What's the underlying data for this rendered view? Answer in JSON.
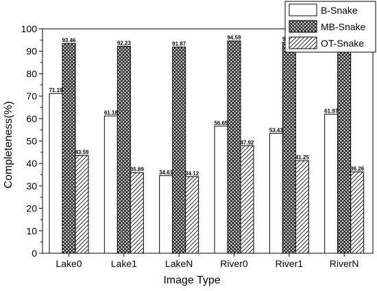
{
  "chart_data": {
    "type": "bar",
    "xlabel": "Image Type",
    "ylabel": "Completeness(%)",
    "ylim": [
      0,
      100
    ],
    "yticks": [
      0,
      10,
      20,
      30,
      40,
      50,
      60,
      70,
      80,
      90,
      100
    ],
    "categories": [
      "Lake0",
      "Lake1",
      "LakeN",
      "River0",
      "River1",
      "RiverN"
    ],
    "series": [
      {
        "name": "B-Snake",
        "pattern": "solid-white",
        "values": [
          71.19,
          61.18,
          34.61,
          56.65,
          53.43,
          61.97
        ]
      },
      {
        "name": "MB-Snake",
        "pattern": "crosshatch",
        "values": [
          93.46,
          92.23,
          91.87,
          94.59,
          94.03,
          89.76
        ]
      },
      {
        "name": "OT-Snake",
        "pattern": "diagonal",
        "values": [
          43.59,
          35.89,
          34.12,
          47.92,
          41.25,
          36.26
        ]
      }
    ],
    "value_labels": [
      [
        "71.19",
        "61.18",
        "34.61",
        "56.65",
        "53.43",
        "61.97"
      ],
      [
        "93.46",
        "92.23",
        "91.87",
        "94.59",
        "94.03",
        "89.76"
      ],
      [
        "43.59",
        "35.89",
        "34.12",
        "47.92",
        "41.25",
        "36.26"
      ]
    ],
    "legend_position": "top-right",
    "grid": false
  }
}
